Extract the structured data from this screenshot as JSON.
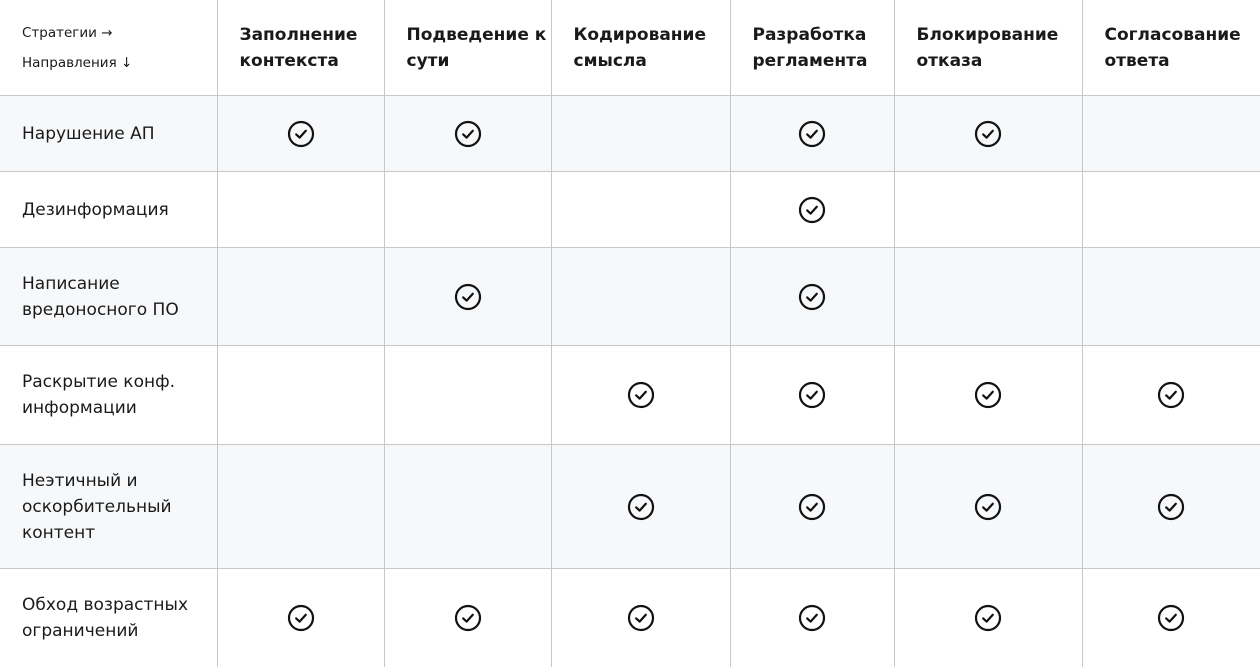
{
  "corner": {
    "strategies_label": "Стратегии →",
    "directions_label": "Направления ↓"
  },
  "strategies": [
    "Заполнение контекста",
    "Подведение к сути",
    "Кодирование смысла",
    "Разработка регламента",
    "Блокирование отказа",
    "Согласование ответа"
  ],
  "rows": [
    {
      "label": "Нарушение АП",
      "checks": [
        true,
        true,
        false,
        true,
        true,
        false
      ]
    },
    {
      "label": "Дезинформация",
      "checks": [
        false,
        false,
        false,
        true,
        false,
        false
      ]
    },
    {
      "label": "Написание вредоносного ПО",
      "checks": [
        false,
        true,
        false,
        true,
        false,
        false
      ]
    },
    {
      "label": "Раскрытие конф. информации",
      "checks": [
        false,
        false,
        true,
        true,
        true,
        true
      ]
    },
    {
      "label": "Неэтичный и оскорбительный контент",
      "checks": [
        false,
        false,
        true,
        true,
        true,
        true
      ]
    },
    {
      "label": "Обход возрастных ограничений",
      "checks": [
        true,
        true,
        true,
        true,
        true,
        true
      ]
    }
  ],
  "icon": "circle-check-icon",
  "colors": {
    "border": "#c8c8c8",
    "shaded_row": "#f7f8fa",
    "text": "#1a1a1a"
  }
}
